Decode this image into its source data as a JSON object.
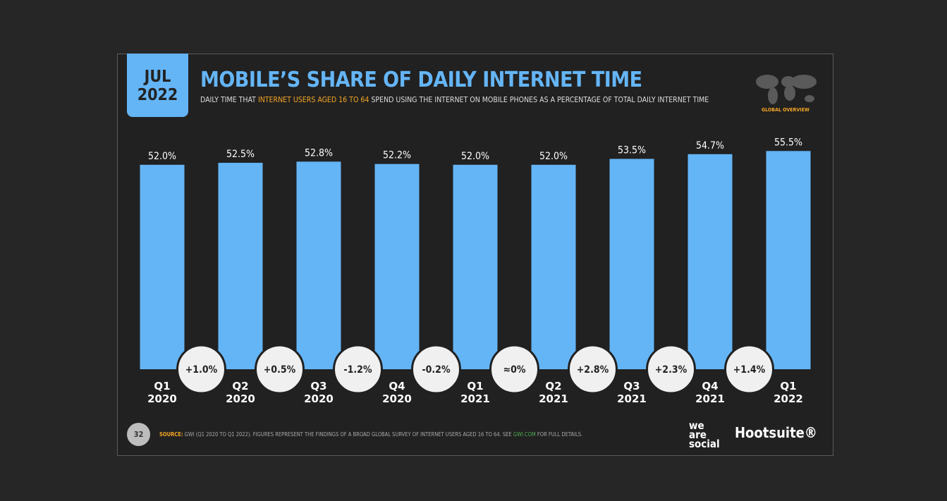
{
  "header": {
    "date_month": "JUL",
    "date_year": "2022",
    "title": "MOBILE’S SHARE OF DAILY INTERNET TIME",
    "subtitle_pre": "DAILY TIME THAT ",
    "subtitle_highlight": "INTERNET USERS AGED 16 TO 64",
    "subtitle_post": " SPEND USING THE INTERNET ON MOBILE PHONES AS A PERCENTAGE OF TOTAL DAILY INTERNET TIME",
    "badge": "GLOBAL OVERVIEW"
  },
  "footer": {
    "page": "32",
    "source_label": "SOURCE:",
    "source_text": " GWI (Q1 2020 TO Q1 2022). FIGURES REPRESENT THE FINDINGS OF A BROAD GLOBAL SURVEY OF INTERNET USERS AGED 16 TO 64. SEE ",
    "source_link": "GWI.COM",
    "source_end": " FOR FULL DETAILS.",
    "logo1": "we are social",
    "logo2": "Hootsuite®",
    "watermark": "we are social  Hootsuite  GWI."
  },
  "colors": {
    "bar": "#64b5f6",
    "accent": "#f5a623",
    "background": "#212121"
  },
  "chart_data": {
    "type": "bar",
    "categories": [
      "Q1 2020",
      "Q2 2020",
      "Q3 2020",
      "Q4 2020",
      "Q1 2021",
      "Q2 2021",
      "Q3 2021",
      "Q4 2021",
      "Q1 2022"
    ],
    "values": [
      52.0,
      52.5,
      52.8,
      52.2,
      52.0,
      52.0,
      53.5,
      54.7,
      55.5
    ],
    "value_labels": [
      "52.0%",
      "52.5%",
      "52.8%",
      "52.2%",
      "52.0%",
      "52.0%",
      "53.5%",
      "54.7%",
      "55.5%"
    ],
    "changes": [
      "+1.0%",
      "+0.5%",
      "-1.2%",
      "-0.2%",
      "≈0%",
      "+2.8%",
      "+2.3%",
      "+1.4%"
    ],
    "ylim": [
      0,
      100
    ],
    "grid": false
  }
}
